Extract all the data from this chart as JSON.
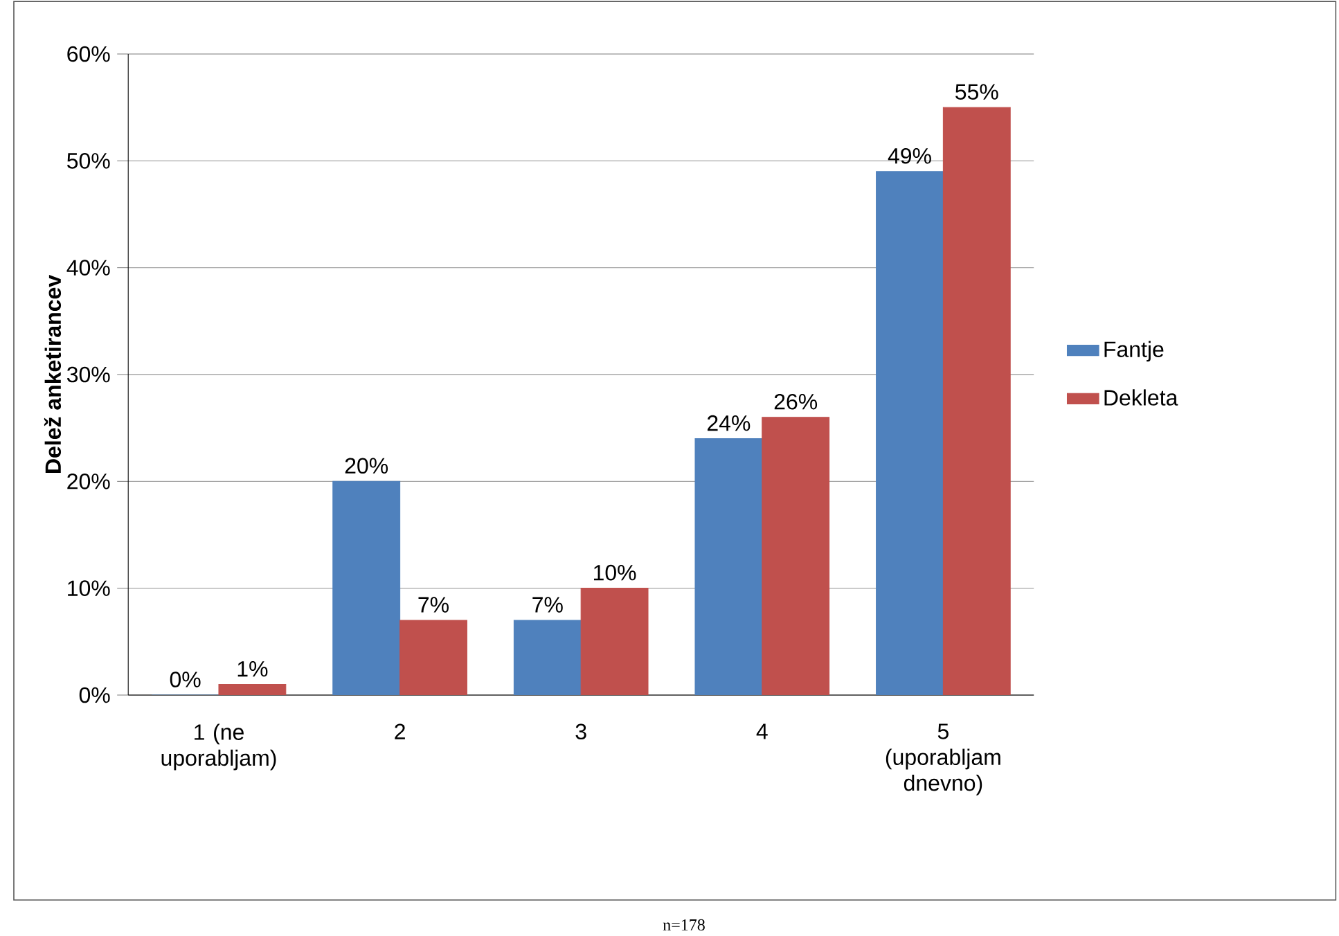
{
  "chart_data": {
    "type": "bar",
    "ylabel": "Delež anketirancev",
    "categories": [
      "1 (ne uporabljam)",
      "2",
      "3",
      "4",
      "5 (uporabljam dnevno)"
    ],
    "series": [
      {
        "name": "Fantje",
        "color": "#4f81bd",
        "values": [
          0,
          20,
          7,
          24,
          49
        ],
        "value_labels": [
          "0%",
          "20%",
          "7%",
          "24%",
          "49%"
        ]
      },
      {
        "name": "Dekleta",
        "color": "#c0504d",
        "values": [
          1,
          7,
          10,
          26,
          55
        ],
        "value_labels": [
          "1%",
          "7%",
          "10%",
          "26%",
          "55%"
        ]
      }
    ],
    "ylim": [
      0,
      60
    ],
    "yticks": [
      {
        "value": 0,
        "label": "0%"
      },
      {
        "value": 10,
        "label": "10%"
      },
      {
        "value": 20,
        "label": "20%"
      },
      {
        "value": 30,
        "label": "30%"
      },
      {
        "value": 40,
        "label": "40%"
      },
      {
        "value": 50,
        "label": "50%"
      },
      {
        "value": 60,
        "label": "60%"
      }
    ],
    "grid": "y",
    "legend": "right",
    "annotations": [
      "n=178"
    ]
  }
}
